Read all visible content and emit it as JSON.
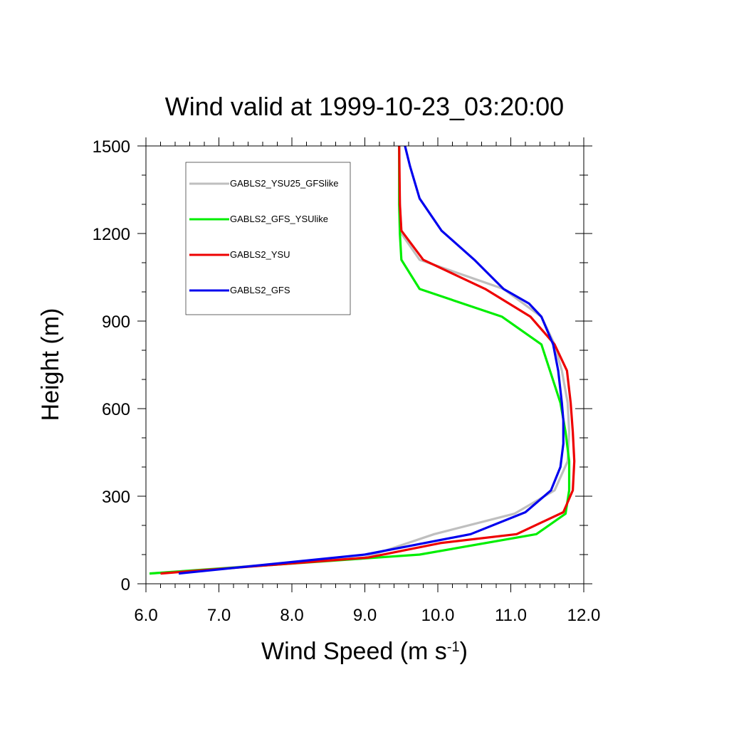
{
  "chart_data": {
    "type": "line",
    "title": "Wind valid at 1999-10-23_03:20:00",
    "xlabel": "Wind Speed (m s",
    "xlabel_superscript": "-1",
    "xlabel_suffix": ")",
    "ylabel": "Height (m)",
    "xlim": [
      6.0,
      12.0
    ],
    "ylim": [
      0,
      1500
    ],
    "x_ticks": [
      "6.0",
      "7.0",
      "8.0",
      "9.0",
      "10.0",
      "11.0",
      "12.0"
    ],
    "x_tick_values": [
      6,
      7,
      8,
      9,
      10,
      11,
      12
    ],
    "y_ticks": [
      "0",
      "300",
      "600",
      "900",
      "1200",
      "1500"
    ],
    "y_tick_values": [
      0,
      300,
      600,
      900,
      1200,
      1500
    ],
    "grid": false,
    "legend_position": "top-left",
    "series": [
      {
        "name": "GABLS2_YSU25_GFSlike",
        "color": "#bfbfbf",
        "x": [
          6.05,
          9.0,
          9.95,
          11.05,
          11.6,
          11.78,
          11.8,
          11.78,
          11.7,
          11.6,
          11.42,
          10.9,
          9.75,
          9.5,
          9.48,
          9.47,
          9.47
        ],
        "y": [
          35,
          90,
          170,
          240,
          320,
          420,
          520,
          620,
          730,
          820,
          915,
          1010,
          1110,
          1200,
          1300,
          1400,
          1500
        ]
      },
      {
        "name": "GABLS2_GFS_YSUlike",
        "color": "#00ee00",
        "x": [
          6.05,
          9.75,
          11.35,
          11.75,
          11.8,
          11.8,
          11.75,
          11.68,
          11.42,
          10.88,
          9.75,
          9.5,
          9.48,
          9.47,
          9.47
        ],
        "y": [
          35,
          100,
          170,
          240,
          320,
          420,
          520,
          620,
          820,
          915,
          1010,
          1110,
          1200,
          1300,
          1500
        ]
      },
      {
        "name": "GABLS2_YSU",
        "color": "#ee0000",
        "x": [
          6.2,
          9.05,
          10.05,
          11.08,
          11.72,
          11.85,
          11.87,
          11.85,
          11.82,
          11.77,
          11.6,
          11.27,
          10.65,
          9.8,
          9.5,
          9.48,
          9.47
        ],
        "y": [
          35,
          90,
          140,
          170,
          245,
          320,
          420,
          520,
          620,
          730,
          820,
          915,
          1010,
          1110,
          1210,
          1300,
          1500
        ]
      },
      {
        "name": "GABLS2_GFS",
        "color": "#0000ee",
        "x": [
          6.45,
          9.0,
          10.45,
          11.2,
          11.55,
          11.68,
          11.72,
          11.72,
          11.7,
          11.65,
          11.58,
          11.42,
          11.25,
          10.9,
          10.5,
          10.05,
          9.75,
          9.62,
          9.55
        ],
        "y": [
          35,
          100,
          170,
          245,
          320,
          400,
          480,
          560,
          620,
          730,
          820,
          915,
          960,
          1010,
          1110,
          1210,
          1320,
          1430,
          1500
        ]
      }
    ]
  }
}
